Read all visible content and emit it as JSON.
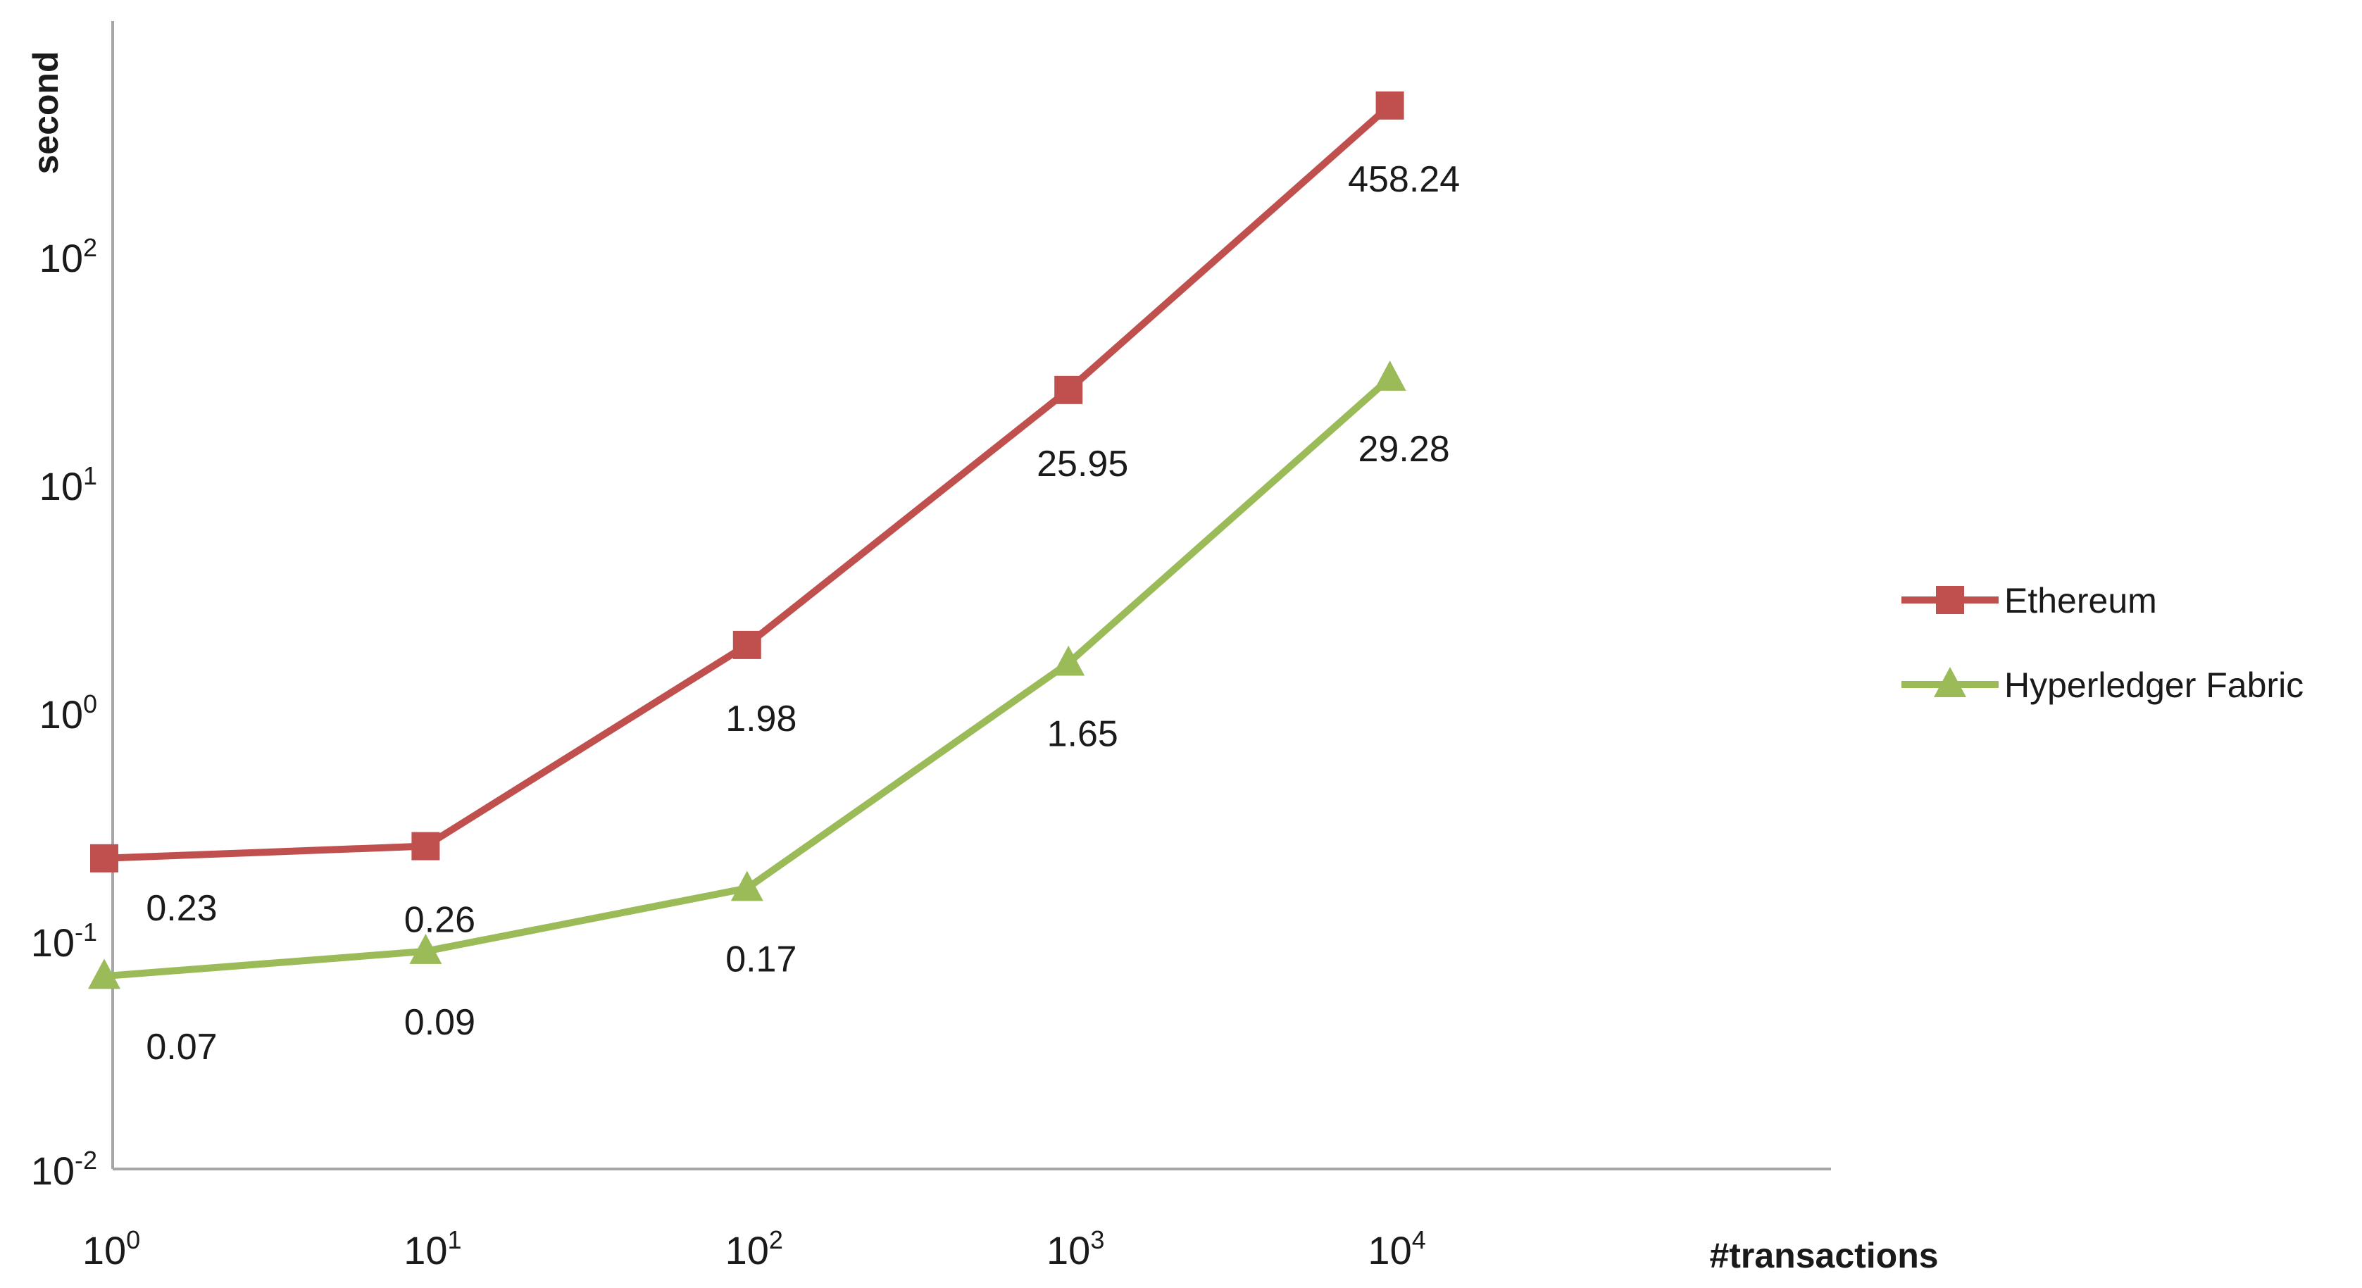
{
  "chart_data": {
    "type": "line",
    "x_scale": "log",
    "y_scale": "log",
    "x": [
      1,
      10,
      100,
      1000,
      10000
    ],
    "xlabel": "#transactions",
    "ylabel": "second",
    "xlim": [
      1,
      100000
    ],
    "ylim": [
      0.01,
      1000
    ],
    "x_ticks": [
      {
        "base": "10",
        "exp": "0"
      },
      {
        "base": "10",
        "exp": "1"
      },
      {
        "base": "10",
        "exp": "2"
      },
      {
        "base": "10",
        "exp": "3"
      },
      {
        "base": "10",
        "exp": "4"
      }
    ],
    "y_ticks": [
      {
        "base": "10",
        "exp": "-2",
        "value": 0.01
      },
      {
        "base": "10",
        "exp": "-1",
        "value": 0.1
      },
      {
        "base": "10",
        "exp": "0",
        "value": 1
      },
      {
        "base": "10",
        "exp": "1",
        "value": 10
      },
      {
        "base": "10",
        "exp": "2",
        "value": 100
      }
    ],
    "grid": false,
    "legend_position": "right",
    "series": [
      {
        "name": "Ethereum",
        "marker": "square",
        "color": "#c0504d",
        "values": [
          0.23,
          0.26,
          1.98,
          25.95,
          458.24
        ],
        "labels": [
          "0.23",
          "0.26",
          "1.98",
          "25.95",
          "458.24"
        ]
      },
      {
        "name": "Hyperledger Fabric",
        "marker": "triangle",
        "color": "#9bbb59",
        "values": [
          0.07,
          0.09,
          0.17,
          1.65,
          29.28
        ],
        "labels": [
          "0.07",
          "0.09",
          "0.17",
          "1.65",
          "29.28"
        ]
      }
    ]
  }
}
